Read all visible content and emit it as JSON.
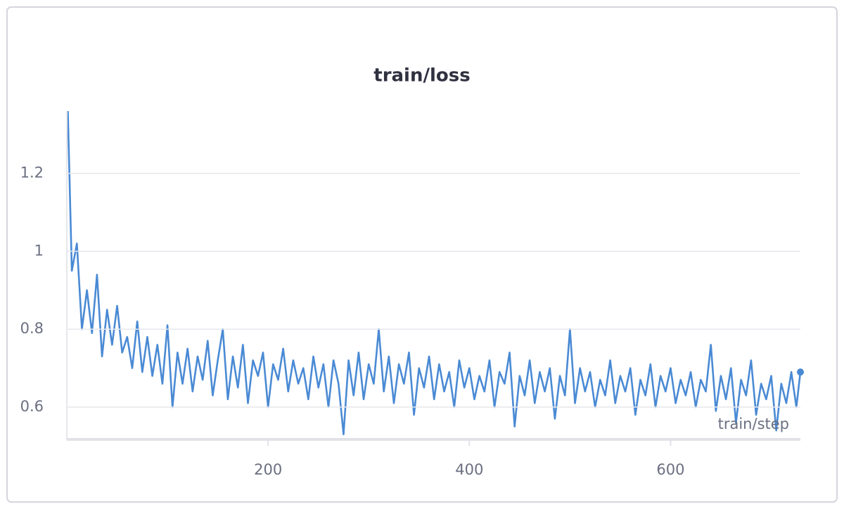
{
  "chart_data": {
    "type": "line",
    "title": "train/loss",
    "x_label": "train/step",
    "x": [
      1,
      5,
      10,
      15,
      20,
      25,
      30,
      35,
      40,
      45,
      50,
      55,
      60,
      65,
      70,
      75,
      80,
      85,
      90,
      95,
      100,
      105,
      110,
      115,
      120,
      125,
      130,
      135,
      140,
      145,
      150,
      155,
      160,
      165,
      170,
      175,
      180,
      185,
      190,
      195,
      200,
      205,
      210,
      215,
      220,
      225,
      230,
      235,
      240,
      245,
      250,
      255,
      260,
      265,
      270,
      275,
      280,
      285,
      290,
      295,
      300,
      305,
      310,
      315,
      320,
      325,
      330,
      335,
      340,
      345,
      350,
      355,
      360,
      365,
      370,
      375,
      380,
      385,
      390,
      395,
      400,
      405,
      410,
      415,
      420,
      425,
      430,
      435,
      440,
      445,
      450,
      455,
      460,
      465,
      470,
      475,
      480,
      485,
      490,
      495,
      500,
      505,
      510,
      515,
      520,
      525,
      530,
      535,
      540,
      545,
      550,
      555,
      560,
      565,
      570,
      575,
      580,
      585,
      590,
      595,
      600,
      605,
      610,
      615,
      620,
      625,
      630,
      635,
      640,
      645,
      650,
      655,
      660,
      665,
      670,
      675,
      680,
      685,
      690,
      695,
      700,
      705,
      710,
      715,
      720,
      725,
      729
    ],
    "series": [
      {
        "name": "train/loss",
        "color": "#4a8ad4",
        "values": [
          1.36,
          0.95,
          1.02,
          0.8,
          0.9,
          0.79,
          0.94,
          0.73,
          0.85,
          0.76,
          0.86,
          0.74,
          0.78,
          0.7,
          0.82,
          0.69,
          0.78,
          0.68,
          0.76,
          0.66,
          0.81,
          0.6,
          0.74,
          0.66,
          0.75,
          0.64,
          0.73,
          0.67,
          0.77,
          0.63,
          0.72,
          0.8,
          0.62,
          0.73,
          0.65,
          0.76,
          0.61,
          0.72,
          0.68,
          0.74,
          0.6,
          0.71,
          0.67,
          0.75,
          0.64,
          0.72,
          0.66,
          0.7,
          0.62,
          0.73,
          0.65,
          0.71,
          0.6,
          0.72,
          0.66,
          0.53,
          0.72,
          0.63,
          0.74,
          0.62,
          0.71,
          0.66,
          0.8,
          0.64,
          0.73,
          0.61,
          0.71,
          0.66,
          0.74,
          0.58,
          0.7,
          0.65,
          0.73,
          0.62,
          0.71,
          0.64,
          0.69,
          0.6,
          0.72,
          0.65,
          0.7,
          0.62,
          0.68,
          0.64,
          0.72,
          0.6,
          0.69,
          0.66,
          0.74,
          0.55,
          0.68,
          0.63,
          0.72,
          0.61,
          0.69,
          0.64,
          0.7,
          0.57,
          0.68,
          0.63,
          0.8,
          0.61,
          0.7,
          0.64,
          0.69,
          0.6,
          0.67,
          0.63,
          0.72,
          0.61,
          0.68,
          0.64,
          0.7,
          0.58,
          0.67,
          0.63,
          0.71,
          0.6,
          0.68,
          0.64,
          0.7,
          0.61,
          0.67,
          0.63,
          0.69,
          0.6,
          0.67,
          0.64,
          0.76,
          0.59,
          0.68,
          0.62,
          0.7,
          0.56,
          0.67,
          0.63,
          0.72,
          0.58,
          0.66,
          0.62,
          0.68,
          0.54,
          0.66,
          0.61,
          0.69,
          0.6,
          0.69
        ]
      }
    ],
    "xlim": [
      0,
      729
    ],
    "xticks": [
      200,
      400,
      600
    ],
    "ylim": [
      0.517,
      1.36
    ],
    "yticks": [
      0.6,
      0.8,
      1,
      1.2
    ],
    "grid": true
  }
}
